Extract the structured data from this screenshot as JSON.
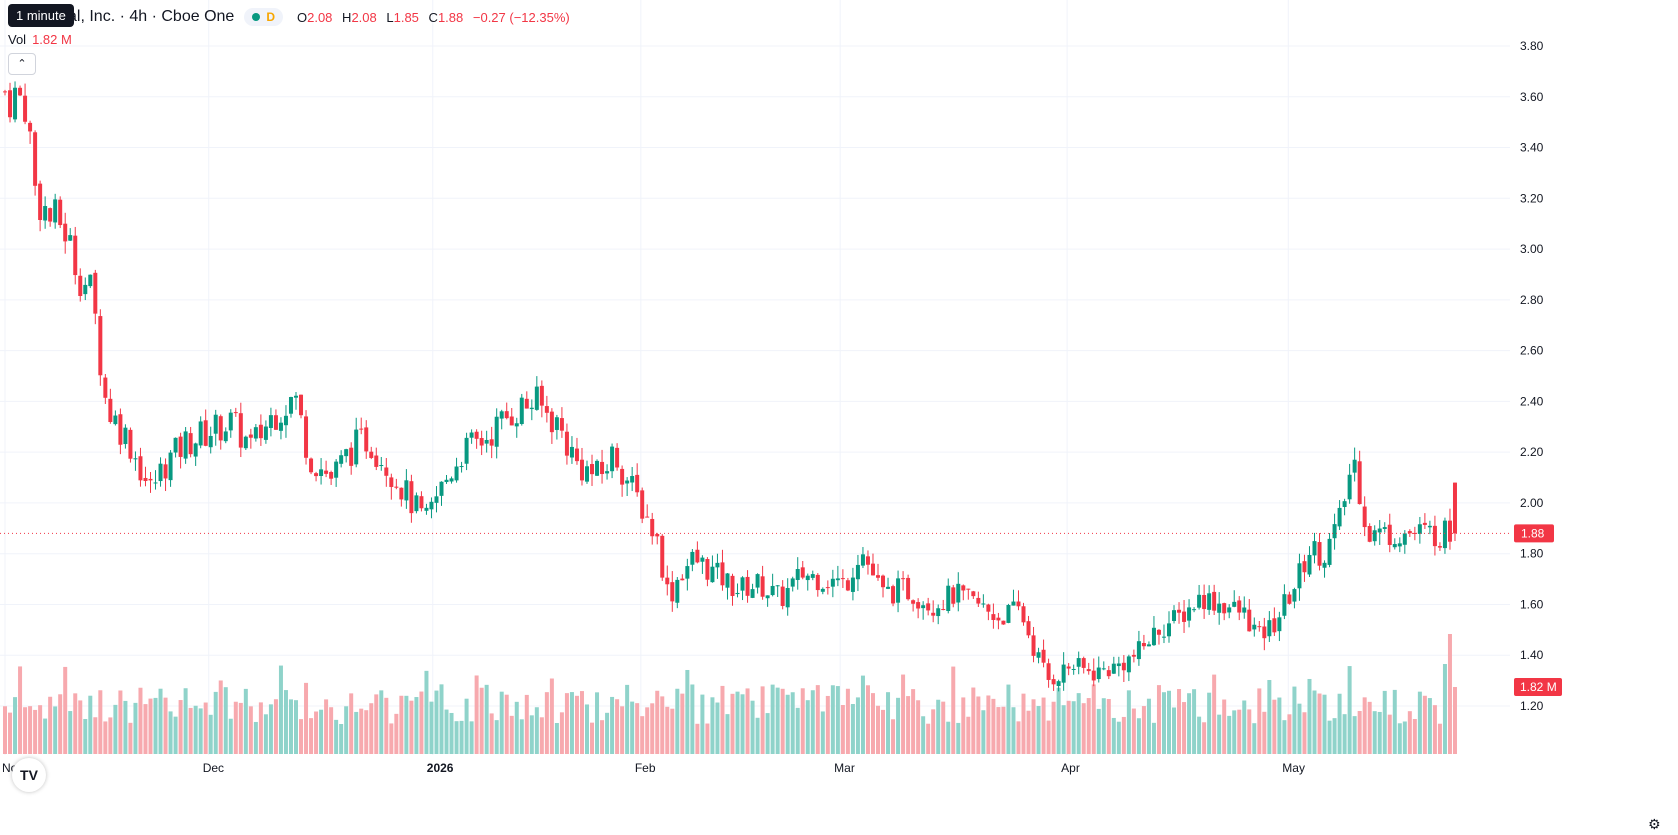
{
  "legend": {
    "title": "ital, Inc. · 4h · Cboe One",
    "badge": "D",
    "open_label": "O",
    "open": "2.08",
    "high_label": "H",
    "high": "2.08",
    "low_label": "L",
    "low": "1.85",
    "close_label": "C",
    "close": "1.88",
    "change": "−0.27 (−12.35%)"
  },
  "tooltip": "1 minute",
  "volume_legend": {
    "label": "Vol",
    "value": "1.82 M"
  },
  "icons": {
    "collapse": "chevron-up-icon",
    "logo": "tradingview-logo-icon",
    "settings": "gear-icon"
  },
  "colors": {
    "up": "#089981",
    "down": "#f23645",
    "up_vol": "#8fd3ca",
    "down_vol": "#f7a9ae",
    "grid": "#f0f3fa"
  },
  "chart_data": {
    "type": "candlestick",
    "interval": "4h",
    "y_ticks": [
      "3.80",
      "3.60",
      "3.40",
      "3.20",
      "3.00",
      "2.80",
      "2.60",
      "2.40",
      "2.20",
      "2.00",
      "1.80",
      "1.60",
      "1.40",
      "1.20"
    ],
    "ylim": [
      1.0,
      3.85
    ],
    "x_ticks": [
      {
        "label": "Nov",
        "bold": false,
        "t": 0
      },
      {
        "label": "Dec",
        "bold": false,
        "t": 0.14
      },
      {
        "label": "2026",
        "bold": true,
        "t": 0.294
      },
      {
        "label": "Feb",
        "bold": false,
        "t": 0.437
      },
      {
        "label": "Mar",
        "bold": false,
        "t": 0.574
      },
      {
        "label": "Apr",
        "bold": false,
        "t": 0.73
      },
      {
        "label": "May",
        "bold": false,
        "t": 0.882
      }
    ],
    "last_price": "1.88",
    "last_price_value": 1.88,
    "last_volume": "1.82 M",
    "anchors": [
      [
        0,
        3.62
      ],
      [
        0.015,
        3.58
      ],
      [
        0.02,
        3.25
      ],
      [
        0.03,
        3.12
      ],
      [
        0.04,
        3.1
      ],
      [
        0.05,
        2.92
      ],
      [
        0.06,
        2.82
      ],
      [
        0.065,
        2.6
      ],
      [
        0.07,
        2.38
      ],
      [
        0.085,
        2.25
      ],
      [
        0.1,
        2.05
      ],
      [
        0.11,
        2.15
      ],
      [
        0.125,
        2.24
      ],
      [
        0.14,
        2.28
      ],
      [
        0.155,
        2.32
      ],
      [
        0.17,
        2.22
      ],
      [
        0.185,
        2.35
      ],
      [
        0.2,
        2.42
      ],
      [
        0.21,
        2.18
      ],
      [
        0.225,
        2.1
      ],
      [
        0.24,
        2.22
      ],
      [
        0.25,
        2.25
      ],
      [
        0.26,
        2.18
      ],
      [
        0.275,
        2.05
      ],
      [
        0.29,
        1.92
      ],
      [
        0.3,
        2.05
      ],
      [
        0.315,
        2.2
      ],
      [
        0.33,
        2.25
      ],
      [
        0.35,
        2.36
      ],
      [
        0.365,
        2.4
      ],
      [
        0.38,
        2.32
      ],
      [
        0.395,
        2.15
      ],
      [
        0.41,
        2.1
      ],
      [
        0.42,
        2.2
      ],
      [
        0.43,
        2.08
      ],
      [
        0.44,
        1.98
      ],
      [
        0.45,
        1.85
      ],
      [
        0.458,
        1.62
      ],
      [
        0.465,
        1.72
      ],
      [
        0.475,
        1.78
      ],
      [
        0.49,
        1.72
      ],
      [
        0.505,
        1.66
      ],
      [
        0.52,
        1.68
      ],
      [
        0.535,
        1.62
      ],
      [
        0.55,
        1.72
      ],
      [
        0.565,
        1.7
      ],
      [
        0.58,
        1.68
      ],
      [
        0.59,
        1.82
      ],
      [
        0.605,
        1.64
      ],
      [
        0.62,
        1.66
      ],
      [
        0.64,
        1.6
      ],
      [
        0.655,
        1.64
      ],
      [
        0.67,
        1.6
      ],
      [
        0.685,
        1.55
      ],
      [
        0.7,
        1.58
      ],
      [
        0.71,
        1.42
      ],
      [
        0.72,
        1.3
      ],
      [
        0.735,
        1.36
      ],
      [
        0.75,
        1.33
      ],
      [
        0.765,
        1.35
      ],
      [
        0.78,
        1.4
      ],
      [
        0.795,
        1.5
      ],
      [
        0.81,
        1.55
      ],
      [
        0.825,
        1.63
      ],
      [
        0.84,
        1.6
      ],
      [
        0.855,
        1.56
      ],
      [
        0.865,
        1.47
      ],
      [
        0.875,
        1.52
      ],
      [
        0.89,
        1.68
      ],
      [
        0.9,
        1.82
      ],
      [
        0.91,
        1.8
      ],
      [
        0.92,
        1.92
      ],
      [
        0.93,
        2.18
      ],
      [
        0.94,
        1.88
      ]
    ],
    "last_candle": {
      "open": 2.08,
      "high": 2.08,
      "low": 1.85,
      "close": 1.88
    },
    "volume_scale": "relative"
  }
}
